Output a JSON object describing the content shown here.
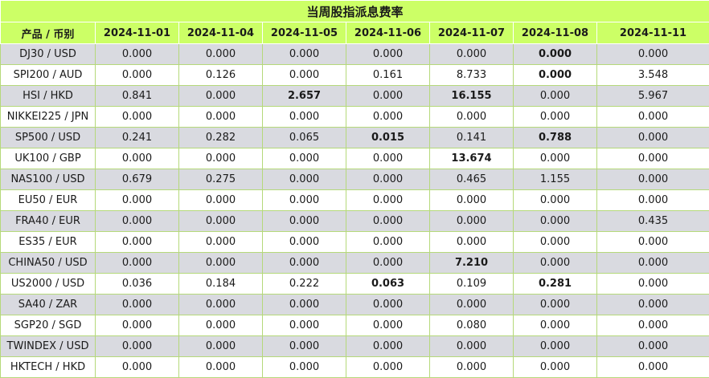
{
  "title": "当周股指派息费率",
  "header": {
    "product_label": "产品 / 币别",
    "dates": [
      "2024-11-01",
      "2024-11-04",
      "2024-11-05",
      "2024-11-06",
      "2024-11-07",
      "2024-11-08",
      "2024-11-11"
    ]
  },
  "rows": [
    {
      "product": "DJ30 / USD",
      "values": [
        "0.000",
        "0.000",
        "0.000",
        "0.000",
        "0.000",
        "0.000",
        "0.000"
      ],
      "bold": [
        5
      ]
    },
    {
      "product": "SPI200 / AUD",
      "values": [
        "0.000",
        "0.126",
        "0.000",
        "0.161",
        "8.733",
        "0.000",
        "3.548"
      ],
      "bold": [
        5
      ]
    },
    {
      "product": "HSI / HKD",
      "values": [
        "0.841",
        "0.000",
        "2.657",
        "0.000",
        "16.155",
        "0.000",
        "5.967"
      ],
      "bold": [
        2,
        4
      ]
    },
    {
      "product": "NIKKEI225 / JPN",
      "values": [
        "0.000",
        "0.000",
        "0.000",
        "0.000",
        "0.000",
        "0.000",
        "0.000"
      ],
      "bold": []
    },
    {
      "product": "SP500 / USD",
      "values": [
        "0.241",
        "0.282",
        "0.065",
        "0.015",
        "0.141",
        "0.788",
        "0.000"
      ],
      "bold": [
        3,
        5
      ]
    },
    {
      "product": "UK100 / GBP",
      "values": [
        "0.000",
        "0.000",
        "0.000",
        "0.000",
        "13.674",
        "0.000",
        "0.000"
      ],
      "bold": [
        4
      ]
    },
    {
      "product": "NAS100 / USD",
      "values": [
        "0.679",
        "0.275",
        "0.000",
        "0.000",
        "0.465",
        "1.155",
        "0.000"
      ],
      "bold": []
    },
    {
      "product": "EU50 / EUR",
      "values": [
        "0.000",
        "0.000",
        "0.000",
        "0.000",
        "0.000",
        "0.000",
        "0.000"
      ],
      "bold": []
    },
    {
      "product": "FRA40 / EUR",
      "values": [
        "0.000",
        "0.000",
        "0.000",
        "0.000",
        "0.000",
        "0.000",
        "0.435"
      ],
      "bold": []
    },
    {
      "product": "ES35 / EUR",
      "values": [
        "0.000",
        "0.000",
        "0.000",
        "0.000",
        "0.000",
        "0.000",
        "0.000"
      ],
      "bold": []
    },
    {
      "product": "CHINA50 / USD",
      "values": [
        "0.000",
        "0.000",
        "0.000",
        "0.000",
        "7.210",
        "0.000",
        "0.000"
      ],
      "bold": [
        4
      ]
    },
    {
      "product": "US2000 / USD",
      "values": [
        "0.036",
        "0.184",
        "0.222",
        "0.063",
        "0.109",
        "0.281",
        "0.000"
      ],
      "bold": [
        3,
        5
      ]
    },
    {
      "product": "SA40 / ZAR",
      "values": [
        "0.000",
        "0.000",
        "0.000",
        "0.000",
        "0.000",
        "0.000",
        "0.000"
      ],
      "bold": []
    },
    {
      "product": "SGP20 / SGD",
      "values": [
        "0.000",
        "0.000",
        "0.000",
        "0.000",
        "0.080",
        "0.000",
        "0.000"
      ],
      "bold": []
    },
    {
      "product": "TWINDEX / USD",
      "values": [
        "0.000",
        "0.000",
        "0.000",
        "0.000",
        "0.000",
        "0.000",
        "0.000"
      ],
      "bold": []
    },
    {
      "product": "HKTECH / HKD",
      "values": [
        "0.000",
        "0.000",
        "0.000",
        "0.000",
        "0.000",
        "0.000",
        "0.000"
      ],
      "bold": []
    }
  ],
  "colors": {
    "header_bg": "#ccff66",
    "row_stripe": "#d9dae0",
    "row_plain": "#ffffff",
    "cell_border": "#b5d97a"
  }
}
